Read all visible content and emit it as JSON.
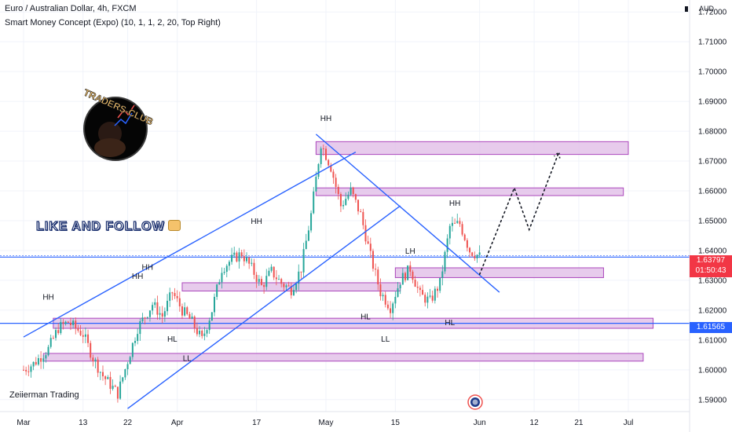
{
  "header": {
    "title": "Euro / Australian Dollar, 4h, FXCM",
    "indicator": "Smart Money Concept (Expo) (10, 1, 1, 2, 20, Top Right)"
  },
  "axis": {
    "currency": "AUD",
    "y_ticks": [
      "1.72000",
      "1.71000",
      "1.70000",
      "1.69000",
      "1.68000",
      "1.67000",
      "1.66000",
      "1.65000",
      "1.64000",
      "1.63000",
      "1.62000",
      "1.61000",
      "1.60000",
      "1.59000"
    ],
    "x_ticks": [
      "Mar",
      "13",
      "22",
      "Apr",
      "17",
      "May",
      "15",
      "Jun",
      "12",
      "21",
      "Jul"
    ]
  },
  "tags": {
    "current_price": "1.63797",
    "countdown": "01:50:43",
    "low_level": "1.61565"
  },
  "overlay": {
    "follow_text": "LIKE AND FOLLOW",
    "logo_text": "TRADERS-CLUB",
    "author": "Zeiierman Trading"
  },
  "colors": {
    "up_candle": "#26a69a",
    "down_candle": "#ef5350",
    "trendline": "#2962ff",
    "zone_fill": "#e1bee7",
    "zone_border": "#ab47bc",
    "current_tag": "#f23645",
    "low_tag": "#2962ff"
  },
  "chart_data": {
    "type": "candlestick",
    "y_range": [
      1.586,
      1.724
    ],
    "date_range": [
      "2023-03-01",
      "2023-07-06"
    ],
    "x_tick_dates": [
      "2023-03-01",
      "2023-03-13",
      "2023-03-22",
      "2023-04-01",
      "2023-04-17",
      "2023-05-01",
      "2023-05-15",
      "2023-06-01",
      "2023-06-12",
      "2023-06-21",
      "2023-07-01"
    ],
    "path": [
      [
        "2023-03-01",
        1.6
      ],
      [
        "2023-03-03",
        1.602
      ],
      [
        "2023-03-06",
        1.607
      ],
      [
        "2023-03-08",
        1.614
      ],
      [
        "2023-03-10",
        1.616
      ],
      [
        "2023-03-13",
        1.612
      ],
      [
        "2023-03-15",
        1.604
      ],
      [
        "2023-03-17",
        1.598
      ],
      [
        "2023-03-20",
        1.592
      ],
      [
        "2023-03-22",
        1.603
      ],
      [
        "2023-03-24",
        1.614
      ],
      [
        "2023-03-27",
        1.622
      ],
      [
        "2023-03-29",
        1.618
      ],
      [
        "2023-03-31",
        1.626
      ],
      [
        "2023-04-02",
        1.62
      ],
      [
        "2023-04-04",
        1.616
      ],
      [
        "2023-04-06",
        1.61
      ],
      [
        "2023-04-08",
        1.62
      ],
      [
        "2023-04-10",
        1.634
      ],
      [
        "2023-04-12",
        1.637
      ],
      [
        "2023-04-14",
        1.639
      ],
      [
        "2023-04-16",
        1.634
      ],
      [
        "2023-04-18",
        1.628
      ],
      [
        "2023-04-20",
        1.633
      ],
      [
        "2023-04-22",
        1.629
      ],
      [
        "2023-04-24",
        1.627
      ],
      [
        "2023-04-26",
        1.634
      ],
      [
        "2023-04-28",
        1.652
      ],
      [
        "2023-04-30",
        1.676
      ],
      [
        "2023-05-02",
        1.668
      ],
      [
        "2023-05-04",
        1.655
      ],
      [
        "2023-05-06",
        1.66
      ],
      [
        "2023-05-08",
        1.652
      ],
      [
        "2023-05-10",
        1.638
      ],
      [
        "2023-05-12",
        1.626
      ],
      [
        "2023-05-14",
        1.621
      ],
      [
        "2023-05-16",
        1.63
      ],
      [
        "2023-05-18",
        1.634
      ],
      [
        "2023-05-20",
        1.625
      ],
      [
        "2023-05-22",
        1.623
      ],
      [
        "2023-05-24",
        1.629
      ],
      [
        "2023-05-26",
        1.648
      ],
      [
        "2023-05-28",
        1.649
      ],
      [
        "2023-05-30",
        1.64
      ],
      [
        "2023-06-01",
        1.638
      ]
    ],
    "forecast_path": [
      [
        "2023-06-01",
        1.632
      ],
      [
        "2023-06-08",
        1.661
      ],
      [
        "2023-06-11",
        1.647
      ],
      [
        "2023-06-17",
        1.673
      ]
    ],
    "trendlines": [
      [
        [
          "2023-03-01",
          1.611
        ],
        [
          "2023-05-07",
          1.673
        ]
      ],
      [
        [
          "2023-03-22",
          1.587
        ],
        [
          "2023-05-16",
          1.655
        ]
      ],
      [
        [
          "2023-04-29",
          1.679
        ],
        [
          "2023-06-05",
          1.626
        ]
      ]
    ],
    "horizontal_lines": [
      1.6378,
      1.6156
    ],
    "zones": [
      {
        "from": "2023-04-29",
        "to": "2023-07-01",
        "top": 1.6765,
        "bottom": 1.6738
      },
      {
        "from": "2023-04-29",
        "to": "2023-06-30",
        "top": 1.661,
        "bottom": 1.66
      },
      {
        "from": "2023-05-15",
        "to": "2023-06-26",
        "top": 1.6342,
        "bottom": 1.6325
      },
      {
        "from": "2023-04-02",
        "to": "2023-05-16",
        "top": 1.6292,
        "bottom": 1.628
      },
      {
        "from": "2023-03-07",
        "to": "2023-07-06",
        "top": 1.6173,
        "bottom": 1.6155
      },
      {
        "from": "2023-03-05",
        "to": "2023-07-04",
        "top": 1.6055,
        "bottom": 1.6045
      }
    ],
    "structure_labels": [
      {
        "text": "HH",
        "date": "2023-03-06",
        "price": 1.6235
      },
      {
        "text": "HH",
        "date": "2023-03-24",
        "price": 1.6305
      },
      {
        "text": "HH",
        "date": "2023-03-26",
        "price": 1.6335
      },
      {
        "text": "HH",
        "date": "2023-04-17",
        "price": 1.649
      },
      {
        "text": "HH",
        "date": "2023-05-01",
        "price": 1.6835
      },
      {
        "text": "HH",
        "date": "2023-05-27",
        "price": 1.655
      },
      {
        "text": "HL",
        "date": "2023-03-31",
        "price": 1.6095
      },
      {
        "text": "HL",
        "date": "2023-05-09",
        "price": 1.617
      },
      {
        "text": "HL",
        "date": "2023-05-26",
        "price": 1.615
      },
      {
        "text": "LL",
        "date": "2023-04-03",
        "price": 1.603
      },
      {
        "text": "LL",
        "date": "2023-05-13",
        "price": 1.6095
      },
      {
        "text": "LH",
        "date": "2023-05-18",
        "price": 1.639
      }
    ]
  }
}
